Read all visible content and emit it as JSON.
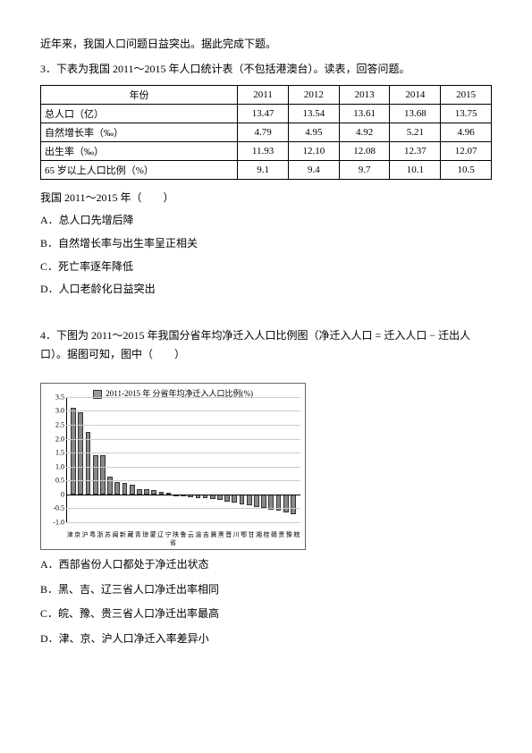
{
  "intro": "近年来，我国人口问题日益突出。据此完成下题。",
  "q3": {
    "stem": "3．下表为我国 2011～2015 年人口统计表（不包括港澳台）。读表，回答问题。"
  },
  "table": {
    "headers": [
      "年份",
      "2011",
      "2012",
      "2013",
      "2014",
      "2015"
    ],
    "rows": [
      [
        "总人口（亿）",
        "13.47",
        "13.54",
        "13.61",
        "13.68",
        "13.75"
      ],
      [
        "自然增长率（‰）",
        "4.79",
        "4.95",
        "4.92",
        "5.21",
        "4.96"
      ],
      [
        "出生率（‰）",
        "11.93",
        "12.10",
        "12.08",
        "12.37",
        "12.07"
      ],
      [
        "65 岁以上人口比例（%）",
        "9.1",
        "9.4",
        "9.7",
        "10.1",
        "10.5"
      ]
    ]
  },
  "afterTable": "我国 2011～2015 年（　　）",
  "options3": [
    "A．总人口先增后降",
    "B．自然增长率与出生率呈正相关",
    "C．死亡率逐年降低",
    "D．人口老龄化日益突出"
  ],
  "q4": {
    "stem": "4．下图为 2011～2015 年我国分省年均净迁入人口比例图（净迁入人口 = 迁入人口 − 迁出人口）。据图可知，图中（　　）"
  },
  "chart": {
    "title": "2011-2015 年 分省年均净迁入人口比例(%)",
    "ymin": -1.0,
    "ymax": 3.5,
    "yticks": [
      -1.0,
      -0.5,
      0,
      0.5,
      1.0,
      1.5,
      2.0,
      2.5,
      3.0,
      3.5
    ],
    "bar_color": "#888888",
    "grid_color": "#cccccc",
    "categories": [
      "津",
      "京",
      "沪",
      "粤",
      "浙",
      "苏",
      "闽",
      "新",
      "藏",
      "青",
      "琼",
      "蒙",
      "辽",
      "宁",
      "陕",
      "鲁",
      "云",
      "渝",
      "吉",
      "冀",
      "黑",
      "晋",
      "川",
      "鄂",
      "甘",
      "湘",
      "桂",
      "赣",
      "贵",
      "豫",
      "皖"
    ],
    "values": [
      3.1,
      2.95,
      2.25,
      1.4,
      1.4,
      0.65,
      0.45,
      0.4,
      0.35,
      0.2,
      0.2,
      0.15,
      0.1,
      0.05,
      0.0,
      -0.05,
      -0.1,
      -0.12,
      -0.15,
      -0.18,
      -0.2,
      -0.25,
      -0.3,
      -0.35,
      -0.4,
      -0.45,
      -0.5,
      -0.55,
      -0.6,
      -0.65,
      -0.7
    ],
    "x_sublabel": "省"
  },
  "options4": [
    "A．西部省份人口都处于净迁出状态",
    "B．黑、吉、辽三省人口净迁出率相同",
    "C．皖、豫、贵三省人口净迁出率最高",
    "D．津、京、沪人口净迁入率差异小"
  ]
}
